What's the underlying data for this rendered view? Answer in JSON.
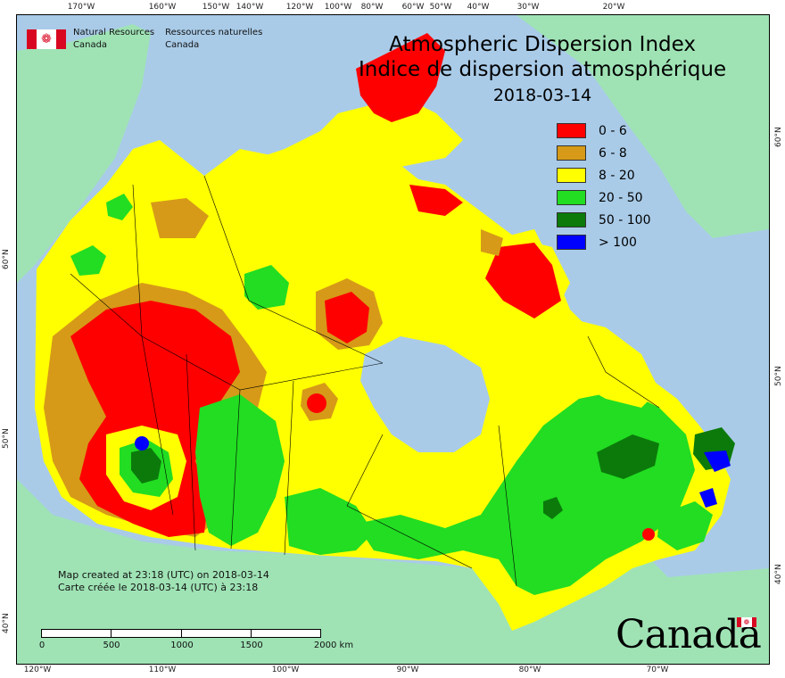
{
  "org": {
    "en_line1": "Natural Resources",
    "en_line2": "Canada",
    "fr_line1": "Ressources naturelles",
    "fr_line2": "Canada"
  },
  "title": {
    "line1": "Atmospheric Dispersion Index",
    "line2": "Indice de dispersion atmosphérique",
    "date": "2018-03-14"
  },
  "legend": [
    {
      "label": "0 - 6",
      "color": "#ff0000"
    },
    {
      "label": "6 - 8",
      "color": "#d69a18"
    },
    {
      "label": "8 - 20",
      "color": "#ffff00"
    },
    {
      "label": "20 - 50",
      "color": "#22dd22"
    },
    {
      "label": "50 - 100",
      "color": "#0b7a0b"
    },
    {
      "label": "> 100",
      "color": "#0000ff"
    }
  ],
  "credit": {
    "line1": "Map created at 23:18 (UTC) on 2018-03-14",
    "line2": "Carte créée le 2018-03-14 (UTC) à 23:18"
  },
  "scale": {
    "labels": [
      "0",
      "500",
      "1000",
      "1500",
      "2000 km"
    ]
  },
  "axes": {
    "top": [
      "170°W",
      "160°W",
      "150°W",
      "140°W",
      "120°W",
      "100°W",
      "80°W",
      "60°W",
      "50°W",
      "40°W",
      "30°W",
      "20°W"
    ],
    "bottom": [
      "120°W",
      "110°W",
      "100°W",
      "90°W",
      "80°W",
      "70°W"
    ],
    "left": [
      "60°N",
      "50°N",
      "40°N"
    ],
    "right": [
      "60°N",
      "50°N",
      "40°N"
    ]
  },
  "wordmark": "Canada",
  "colors": {
    "ocean": "#a9cbe8",
    "land_outside": "#9fe3b5"
  }
}
